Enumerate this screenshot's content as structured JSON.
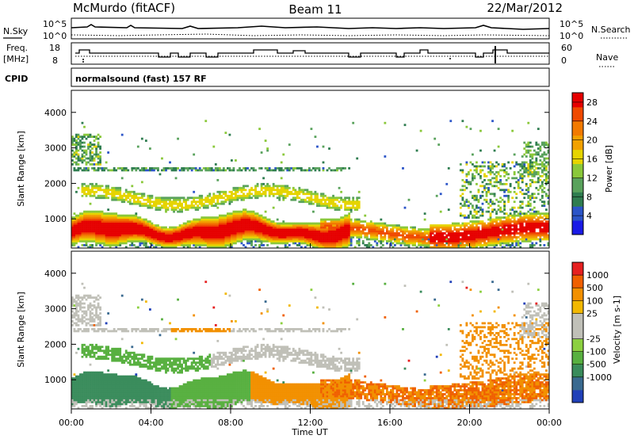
{
  "header": {
    "station": "McMurdo (fitACF)",
    "beam": "Beam 11",
    "date": "22/Mar/2012"
  },
  "top_panels": {
    "nsky_label": "N.Sky",
    "nsearch_label": "N.Search",
    "noise_ticks": [
      "10^5",
      "10^0"
    ],
    "freq_label_line1": "Freq.",
    "freq_label_line2": "[MHz]",
    "freq_ticks": [
      "18",
      "8"
    ],
    "nave_label": "Nave",
    "nave_ticks": [
      "60",
      "0"
    ],
    "cpid_label": "CPID",
    "cpid_text": "normalsound (fast) 157 RF"
  },
  "chart_data": [
    {
      "type": "heatmap",
      "name": "power",
      "ylabel": "Slant Range [km]",
      "yticks": [
        1000,
        2000,
        3000,
        4000
      ],
      "ylim": [
        180,
        4620
      ],
      "xlabel": "Time UT",
      "xticks": [
        "00:00",
        "04:00",
        "08:00",
        "12:00",
        "16:00",
        "20:00",
        "00:00"
      ],
      "xlim_hours": [
        0,
        24
      ],
      "colorbar": {
        "label": "Power [dB]",
        "ticks": [
          "4",
          "8",
          "12",
          "16",
          "20",
          "24",
          "28"
        ],
        "colors": [
          "#1a1ae6",
          "#2c55c8",
          "#2f7d50",
          "#59a25c",
          "#8ac83a",
          "#e6d400",
          "#f2a100",
          "#f27a00",
          "#f04a00",
          "#e60000"
        ],
        "range": [
          0,
          30
        ]
      }
    },
    {
      "type": "heatmap",
      "name": "velocity",
      "ylabel": "Slant Range [km]",
      "yticks": [
        1000,
        2000,
        3000,
        4000
      ],
      "ylim": [
        180,
        4620
      ],
      "xlabel": "Time UT",
      "xticks": [
        "00:00",
        "04:00",
        "08:00",
        "12:00",
        "16:00",
        "20:00",
        "00:00"
      ],
      "xlim_hours": [
        0,
        24
      ],
      "colorbar": {
        "label": "Velocity [m s-1]",
        "ticks": [
          "1000",
          "500",
          "100",
          "25",
          "-25",
          "-100",
          "-500",
          "-1000"
        ],
        "colors": [
          "#2040b8",
          "#3a6a90",
          "#3a8c5c",
          "#58b040",
          "#8cd040",
          "#c0c0b8",
          "#c0c0b8",
          "#f2b800",
          "#f29000",
          "#f06000",
          "#e62020"
        ]
      }
    }
  ]
}
